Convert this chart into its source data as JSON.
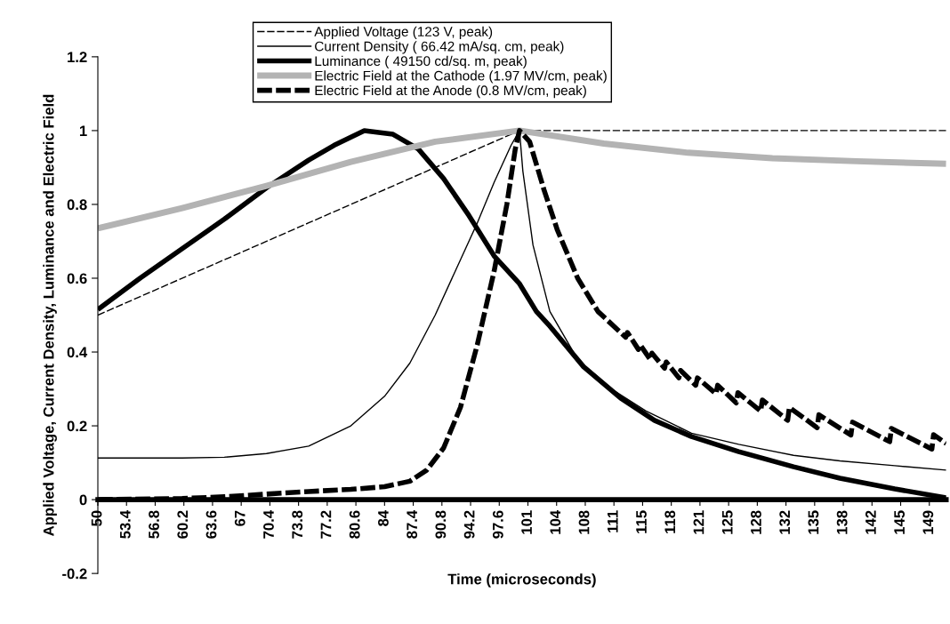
{
  "chart_data": {
    "type": "line",
    "xlabel": "Time (microseconds)",
    "ylabel": "Applied Voltage, Current Density, Luminance and Electric Field",
    "xlim": [
      50,
      150.6
    ],
    "ylim": [
      -0.2,
      1.2
    ],
    "xticks": [
      50,
      53.4,
      56.8,
      60.2,
      63.6,
      67,
      70.4,
      73.8,
      77.2,
      80.6,
      84,
      87.4,
      90.8,
      94.2,
      97.6,
      {
        "value": 101.0,
        "label": "101"
      },
      {
        "value": 104.4,
        "label": "104"
      },
      {
        "value": 107.8,
        "label": "108"
      },
      {
        "value": 111.2,
        "label": "111"
      },
      {
        "value": 114.6,
        "label": "115"
      },
      {
        "value": 118.0,
        "label": "118"
      },
      {
        "value": 121.4,
        "label": "121"
      },
      {
        "value": 124.8,
        "label": "125"
      },
      {
        "value": 128.2,
        "label": "128"
      },
      {
        "value": 131.6,
        "label": "132"
      },
      {
        "value": 135.0,
        "label": "135"
      },
      {
        "value": 138.4,
        "label": "138"
      },
      {
        "value": 141.8,
        "label": "142"
      },
      {
        "value": 145.2,
        "label": "145"
      },
      {
        "value": 148.6,
        "label": "149"
      }
    ],
    "yticks": [
      -0.2,
      0,
      0.2,
      0.4,
      0.6,
      0.8,
      1,
      1.2
    ],
    "grid": false,
    "legend": "top",
    "marker": "none",
    "series": [
      {
        "name": "Applied Voltage (123 V, peak)",
        "color": "#000000",
        "line_style": "dashed",
        "x": [
          50,
          75,
          100,
          125,
          150.6
        ],
        "values": [
          0.5,
          0.75,
          1.0,
          1.0,
          1.0
        ]
      },
      {
        "name": "Current Density ( 66.42 mA/sq. cm, peak)",
        "color": "#000000",
        "line_style": "solid",
        "x": [
          50,
          60,
          65,
          70,
          75,
          80,
          84,
          87,
          90,
          93,
          95,
          97,
          99,
          100,
          100.4,
          101.6,
          103.6,
          106.9,
          110.9,
          115,
          120.4,
          126,
          132.5,
          138,
          144.5,
          150.6
        ],
        "values": [
          0.113,
          0.113,
          0.115,
          0.125,
          0.145,
          0.2,
          0.28,
          0.37,
          0.5,
          0.65,
          0.75,
          0.86,
          0.96,
          1.0,
          0.89,
          0.69,
          0.51,
          0.38,
          0.3,
          0.24,
          0.18,
          0.15,
          0.12,
          0.105,
          0.092,
          0.08
        ]
      },
      {
        "name": "Luminance ( 49150 cd/sq. m, peak)",
        "color": "#000000",
        "line_style": "solid",
        "x": [
          50,
          55,
          60,
          65,
          70,
          75,
          78,
          81.6,
          85,
          88,
          91,
          94,
          97,
          100,
          102,
          103.6,
          107.6,
          112,
          116,
          120.4,
          126,
          132.5,
          138,
          144.5,
          150.6
        ],
        "values": [
          0.515,
          0.6,
          0.68,
          0.76,
          0.845,
          0.92,
          0.96,
          1.0,
          0.99,
          0.95,
          0.87,
          0.77,
          0.66,
          0.585,
          0.51,
          0.47,
          0.36,
          0.275,
          0.215,
          0.171,
          0.13,
          0.089,
          0.058,
          0.029,
          0.005
        ]
      },
      {
        "name": "Electric Field at the Cathode (1.97 MV/cm, peak)",
        "color": "#b3b3b3",
        "line_style": "solid",
        "x": [
          50,
          60,
          70,
          80,
          90,
          100,
          110,
          120,
          130,
          140,
          150.6
        ],
        "values": [
          0.735,
          0.79,
          0.85,
          0.915,
          0.97,
          1.0,
          0.965,
          0.94,
          0.925,
          0.917,
          0.91
        ]
      },
      {
        "name": "Electric Field at the Anode (0.8 MV/cm, peak)",
        "color": "#000000",
        "line_style": "dashed",
        "x": [
          50,
          60,
          65,
          70,
          75,
          80,
          84,
          87,
          89,
          91,
          93,
          95,
          97,
          98.5,
          99.5,
          100,
          101.2,
          102.9,
          104.5,
          106.9,
          109.3,
          112.6,
          112.8,
          114.1,
          114.3,
          115.5,
          115.7,
          117.2,
          117.4,
          118.9,
          119.1,
          120.9,
          121.1,
          123.3,
          123.5,
          125.7,
          125.9,
          128.6,
          128.8,
          131.8,
          132.0,
          135.3,
          135.5,
          139.3,
          139.5,
          143.9,
          144.1,
          148.9,
          149.1,
          150.6
        ],
        "values": [
          0.0,
          0.003,
          0.008,
          0.015,
          0.022,
          0.028,
          0.035,
          0.05,
          0.08,
          0.14,
          0.25,
          0.42,
          0.62,
          0.8,
          0.95,
          1.0,
          0.97,
          0.84,
          0.73,
          0.6,
          0.51,
          0.44,
          0.453,
          0.407,
          0.42,
          0.38,
          0.397,
          0.356,
          0.373,
          0.33,
          0.35,
          0.31,
          0.33,
          0.287,
          0.31,
          0.262,
          0.29,
          0.24,
          0.27,
          0.215,
          0.25,
          0.195,
          0.23,
          0.175,
          0.21,
          0.157,
          0.193,
          0.137,
          0.176,
          0.152
        ]
      }
    ]
  }
}
